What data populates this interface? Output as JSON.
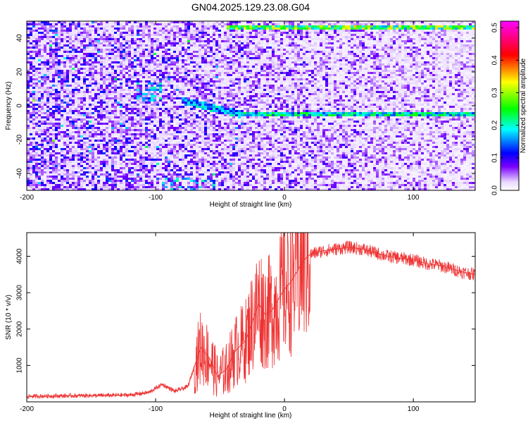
{
  "title": "GN04.2025.129.23.08.G04",
  "chart_data": [
    {
      "type": "heatmap",
      "title": "GN04.2025.129.23.08.G04",
      "xlabel": "Height of straight line (km)",
      "ylabel": "Frequency (Hz)",
      "xlim": [
        -200,
        148
      ],
      "ylim": [
        -50,
        50
      ],
      "x_ticks": [
        -200,
        -100,
        0,
        100
      ],
      "x_tick_labels": [
        "-200",
        "-100",
        "0",
        "100"
      ],
      "y_ticks": [
        40,
        20,
        0,
        -20,
        -40
      ],
      "y_tick_labels": [
        "40",
        "20",
        "0",
        "-20",
        "-40"
      ],
      "colorbar": {
        "label": "Normalized spectral amplitude",
        "range": [
          0,
          0.52
        ],
        "ticks": [
          0,
          0.1,
          0.2,
          0.3,
          0.4,
          0.5
        ],
        "tick_labels": [
          "0.0",
          "0.1",
          "0.2",
          "0.3",
          "0.4",
          "0.5"
        ],
        "colors": [
          "#ffffff",
          "#7a00ff",
          "#0000ff",
          "#00ffff",
          "#00ff00",
          "#ffff00",
          "#ff0000",
          "#ff00ff"
        ]
      },
      "features": [
        {
          "name": "",
          "x_range": [
            -45,
            148
          ],
          "frequency": 46,
          "amplitude": 0.35
        },
        {
          "name": "",
          "x_range": [
            -35,
            148
          ],
          "frequency": -5,
          "amplitude": 0.25
        },
        {
          "name": "",
          "x_range": [
            -80,
            -35
          ],
          "frequency_start": 3,
          "frequency_end": -5,
          "amplitude": 0.22
        }
      ],
      "grid": false
    },
    {
      "type": "line",
      "xlabel": "Height of straight line (km)",
      "ylabel": "SNR (10 * v/v)",
      "xlim": [
        -200,
        148
      ],
      "ylim": [
        0,
        4650
      ],
      "x_ticks": [
        -200,
        -100,
        0,
        100
      ],
      "x_tick_labels": [
        "-200",
        "-100",
        "0",
        "100"
      ],
      "y_ticks": [
        1000,
        2000,
        3000,
        4000
      ],
      "y_tick_labels": [
        "1000",
        "2000",
        "3000",
        "4000"
      ],
      "color": "#ee3333",
      "series": [
        {
          "x": [
            -200,
            -180,
            -160,
            -140,
            -120,
            -105,
            -95,
            -85,
            -75,
            -65,
            -58,
            -52,
            -45,
            -38,
            -30,
            -25,
            -20,
            -15,
            -10,
            -5,
            0,
            5,
            10,
            15,
            20,
            25,
            30,
            40,
            50,
            60,
            70,
            80,
            90,
            100,
            110,
            120,
            130,
            140,
            148
          ],
          "y": [
            150,
            160,
            170,
            175,
            190,
            260,
            480,
            290,
            420,
            1500,
            1200,
            700,
            900,
            1400,
            1700,
            2200,
            2700,
            2400,
            2500,
            2800,
            3100,
            3300,
            3600,
            3900,
            4050,
            4100,
            4150,
            4200,
            4250,
            4200,
            4100,
            4000,
            3950,
            3900,
            3800,
            3750,
            3650,
            3550,
            3500
          ]
        }
      ],
      "grid": false
    }
  ]
}
